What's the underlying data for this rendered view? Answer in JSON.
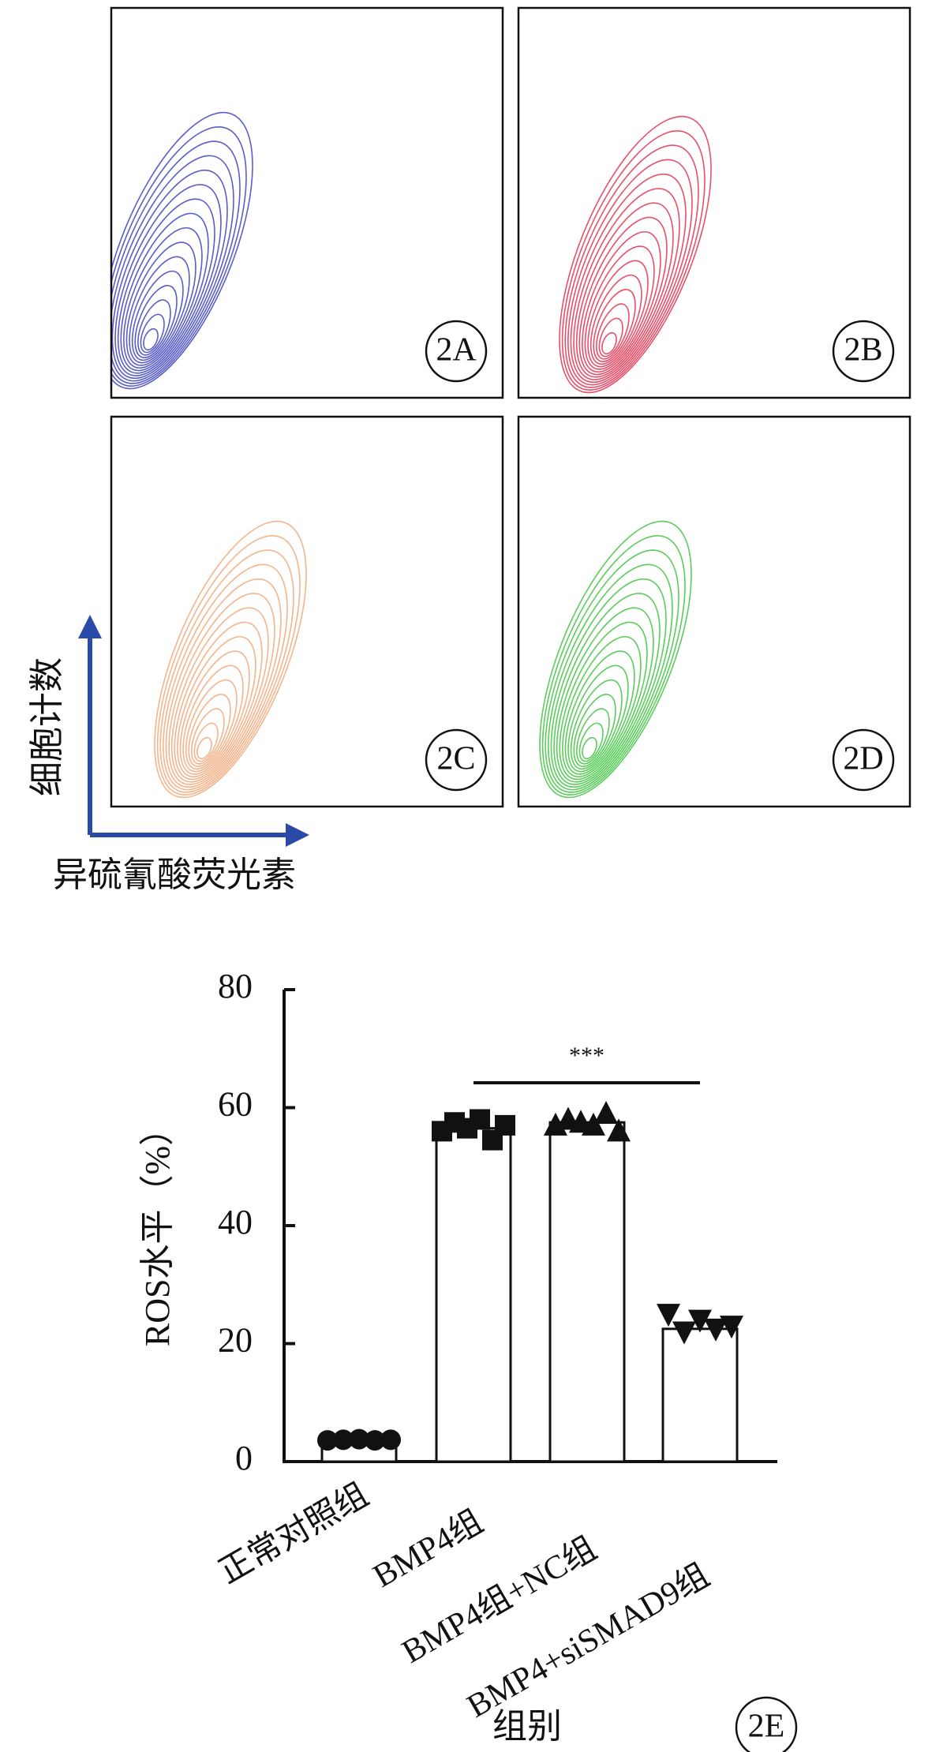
{
  "panels": [
    {
      "label": "2A",
      "color": "#5a5fc8"
    },
    {
      "label": "2B",
      "color": "#e8506a"
    },
    {
      "label": "2C",
      "color": "#f4b48c"
    },
    {
      "label": "2D",
      "color": "#5ccc5c"
    }
  ],
  "y_arrow_label": "细胞计数",
  "x_arrow_label": "异硫氰酸荧光素",
  "arrow_color": "#2a4aa8",
  "chart_data": {
    "type": "bar",
    "panel_label": "2E",
    "categories": [
      "正常对照组",
      "BMP4组",
      "BMP4组+NC组",
      "BMP4+siSMAD9组"
    ],
    "values": [
      3.7,
      56.5,
      57.5,
      22.5
    ],
    "points": [
      [
        3.6,
        3.7,
        3.8,
        3.6,
        3.7
      ],
      [
        56,
        57.5,
        56.5,
        58,
        54.5,
        57
      ],
      [
        57,
        58,
        57.5,
        57,
        59,
        56
      ],
      [
        25,
        22,
        24,
        22.5,
        23
      ]
    ],
    "markers": [
      "circle",
      "square",
      "triangle",
      "triangle-down"
    ],
    "color": "#ffffff",
    "ylim": [
      0,
      80
    ],
    "yticks": [
      0,
      20,
      40,
      60,
      80
    ],
    "ylabel": "ROS水平（%）",
    "xlabel": "组别",
    "annotation": {
      "text": "***",
      "from": 1,
      "to": 3
    }
  }
}
